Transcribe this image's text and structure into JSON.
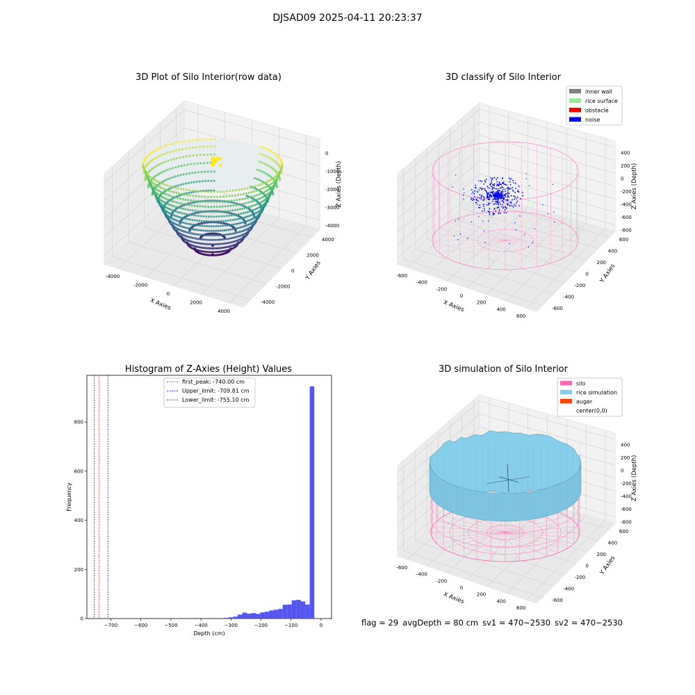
{
  "figure": {
    "suptitle": "DJSAD09 2025-04-11 20:23:37",
    "footer": {
      "flag": "flag = 29",
      "avg_depth": "avgDepth = 80 cm",
      "sv1": "sv1 = 470~2530",
      "sv2": "sv2 = 470~2530"
    }
  },
  "chart_data": [
    {
      "type": "scatter",
      "title": "3D Plot of Silo Interior(row data)",
      "xlabel": "X Axies",
      "ylabel": "Y Axies",
      "zlabel": "Z Axies (Depth)",
      "xticks": [
        "-4000",
        "-2000",
        "0",
        "2000",
        "4000"
      ],
      "yticks": [
        "-4000",
        "-2000",
        "0",
        "2000",
        "4000"
      ],
      "zticks": [
        "0",
        "-1000",
        "-2000",
        "-3000",
        "-4000"
      ],
      "colormap": "viridis",
      "surface": "paraboloid bowl, depth 0 to -4300"
    },
    {
      "type": "scatter",
      "title": "3D classify of Silo Interior",
      "xlabel": "X Axies",
      "ylabel": "Y Axies",
      "zlabel": "Z Axies (Depth)",
      "xticks": [
        "-600",
        "-400",
        "-200",
        "0",
        "200",
        "400",
        "600"
      ],
      "yticks": [
        "-600",
        "-400",
        "-200",
        "0",
        "200",
        "400",
        "600"
      ],
      "zticks": [
        "400",
        "200",
        "0",
        "-200",
        "-400",
        "-600",
        "-800"
      ],
      "legend_position": "top-right",
      "legend": [
        {
          "label": "inner wall",
          "color": "#808080"
        },
        {
          "label": "rice surface",
          "color": "#90ee90"
        },
        {
          "label": "obstacle",
          "color": "#ff0000"
        },
        {
          "label": "noise",
          "color": "#0000ff"
        }
      ]
    },
    {
      "type": "bar",
      "title": "Histogram of Z-Axies (Height) Values",
      "xlabel": "Depth (cm)",
      "ylabel": "Frequency",
      "xlim": [
        -780,
        35
      ],
      "ylim": [
        0,
        990
      ],
      "xticks": [
        -700,
        -600,
        -500,
        -400,
        -300,
        -200,
        -100,
        0
      ],
      "yticks": [
        0,
        200,
        400,
        600,
        800
      ],
      "bin_width": 15,
      "bar_color": "#4c4cf0",
      "bins": [
        {
          "x": -540,
          "v": 2
        },
        {
          "x": -465,
          "v": 2
        },
        {
          "x": -450,
          "v": 2
        },
        {
          "x": -420,
          "v": 2
        },
        {
          "x": -405,
          "v": 2
        },
        {
          "x": -375,
          "v": 2
        },
        {
          "x": -360,
          "v": 2
        },
        {
          "x": -330,
          "v": 2
        },
        {
          "x": -315,
          "v": 3
        },
        {
          "x": -300,
          "v": 5
        },
        {
          "x": -285,
          "v": 8
        },
        {
          "x": -270,
          "v": 16
        },
        {
          "x": -255,
          "v": 24
        },
        {
          "x": -240,
          "v": 20
        },
        {
          "x": -225,
          "v": 22
        },
        {
          "x": -210,
          "v": 19
        },
        {
          "x": -195,
          "v": 25
        },
        {
          "x": -180,
          "v": 28
        },
        {
          "x": -165,
          "v": 33
        },
        {
          "x": -150,
          "v": 36
        },
        {
          "x": -135,
          "v": 39
        },
        {
          "x": -120,
          "v": 56
        },
        {
          "x": -105,
          "v": 57
        },
        {
          "x": -90,
          "v": 74
        },
        {
          "x": -75,
          "v": 76
        },
        {
          "x": -60,
          "v": 70
        },
        {
          "x": -45,
          "v": 57
        },
        {
          "x": -30,
          "v": 945
        }
      ],
      "vlines": [
        {
          "label": "first_peak: -740.00 cm",
          "x": -740,
          "color": "#ff0000"
        },
        {
          "label": "Upper_limit: -709.81 cm",
          "x": -709.81,
          "color": "#0000ff"
        },
        {
          "label": "Lower_limit: -755.10 cm",
          "x": -755.1,
          "color": "#0000ff"
        }
      ],
      "legend_position": "top-center"
    },
    {
      "type": "area",
      "title": "3D simulation of Silo Interior",
      "xlabel": "X Axies",
      "ylabel": "Y Axies",
      "zlabel": "Z Axies (Depth)",
      "xticks": [
        "-600",
        "-400",
        "-200",
        "0",
        "200",
        "400",
        "600"
      ],
      "yticks": [
        "-600",
        "-400",
        "-200",
        "0",
        "200",
        "400",
        "600"
      ],
      "zticks": [
        "400",
        "200",
        "0",
        "-200",
        "-400",
        "-600",
        "-800"
      ],
      "legend_position": "top-right",
      "legend": [
        {
          "label": "silo",
          "color": "#ff69b4"
        },
        {
          "label": "rice simulation",
          "color": "#87ceeb"
        },
        {
          "label": "auger",
          "color": "#ff4500"
        },
        {
          "label": "center(0,0)",
          "color": "#ffffff"
        }
      ]
    }
  ]
}
